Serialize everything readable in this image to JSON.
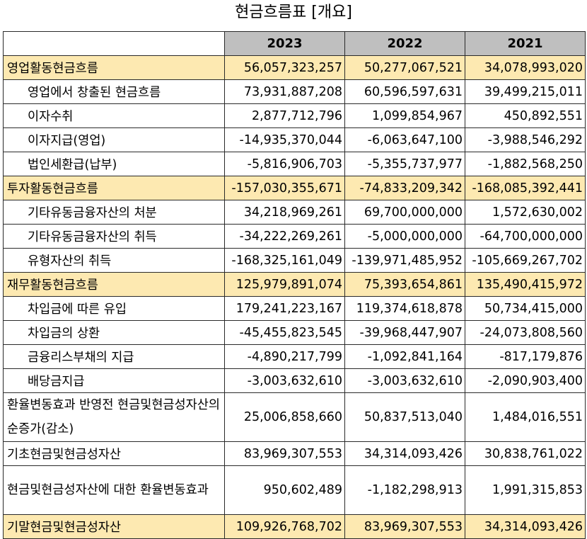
{
  "title": "현금흐름표 [개요]",
  "columns": [
    "",
    "2023",
    "2022",
    "2021"
  ],
  "rows": [
    {
      "label": "영업활동현금흐름",
      "v2023": "56,057,323,257",
      "v2022": "50,277,067,521",
      "v2021": "34,078,993,020"
    },
    {
      "label": "영업에서 창출된 현금흐름",
      "v2023": "73,931,887,208",
      "v2022": "60,596,597,631",
      "v2021": "39,499,215,011"
    },
    {
      "label": "이자수취",
      "v2023": "2,877,712,796",
      "v2022": "1,099,854,967",
      "v2021": "450,892,551"
    },
    {
      "label": "이자지급(영업)",
      "v2023": "-14,935,370,044",
      "v2022": "-6,063,647,100",
      "v2021": "-3,988,546,292"
    },
    {
      "label": "법인세환급(납부)",
      "v2023": "-5,816,906,703",
      "v2022": "-5,355,737,977",
      "v2021": "-1,882,568,250"
    },
    {
      "label": "투자활동현금흐름",
      "v2023": "-157,030,355,671",
      "v2022": "-74,833,209,342",
      "v2021": "-168,085,392,441"
    },
    {
      "label": "기타유동금융자산의 처분",
      "v2023": "34,218,969,261",
      "v2022": "69,700,000,000",
      "v2021": "1,572,630,002"
    },
    {
      "label": "기타유동금융자산의 취득",
      "v2023": "-34,222,269,261",
      "v2022": "-5,000,000,000",
      "v2021": "-64,700,000,000"
    },
    {
      "label": "유형자산의 취득",
      "v2023": "-168,325,161,049",
      "v2022": "-139,971,485,952",
      "v2021": "-105,669,267,702"
    },
    {
      "label": "재무활동현금흐름",
      "v2023": "125,979,891,074",
      "v2022": "75,393,654,861",
      "v2021": "135,490,415,972"
    },
    {
      "label": "차입금에 따른 유입",
      "v2023": "179,241,223,167",
      "v2022": "119,374,618,878",
      "v2021": "50,734,415,000"
    },
    {
      "label": "차입금의 상환",
      "v2023": "-45,455,823,545",
      "v2022": "-39,968,447,907",
      "v2021": "-24,073,808,560"
    },
    {
      "label": "금융리스부채의 지급",
      "v2023": "-4,890,217,799",
      "v2022": "-1,092,841,164",
      "v2021": "-817,179,876"
    },
    {
      "label": "배당금지급",
      "v2023": "-3,003,632,610",
      "v2022": "-3,003,632,610",
      "v2021": "-2,090,903,400"
    },
    {
      "label": "환율변동효과 반영전 현금및현금성자산의 순증가(감소)",
      "v2023": "25,006,858,660",
      "v2022": "50,837,513,040",
      "v2021": "1,484,016,551"
    },
    {
      "label": "기초현금및현금성자산",
      "v2023": "83,969,307,553",
      "v2022": "34,314,093,426",
      "v2021": "30,838,761,022"
    },
    {
      "label": "현금및현금성자산에 대한 환율변동효과",
      "v2023": "950,602,489",
      "v2022": "-1,182,298,913",
      "v2021": "1,991,315,853"
    },
    {
      "label": "기말현금및현금성자산",
      "v2023": "109,926,768,702",
      "v2022": "83,969,307,553",
      "v2021": "34,314,093,426"
    }
  ]
}
